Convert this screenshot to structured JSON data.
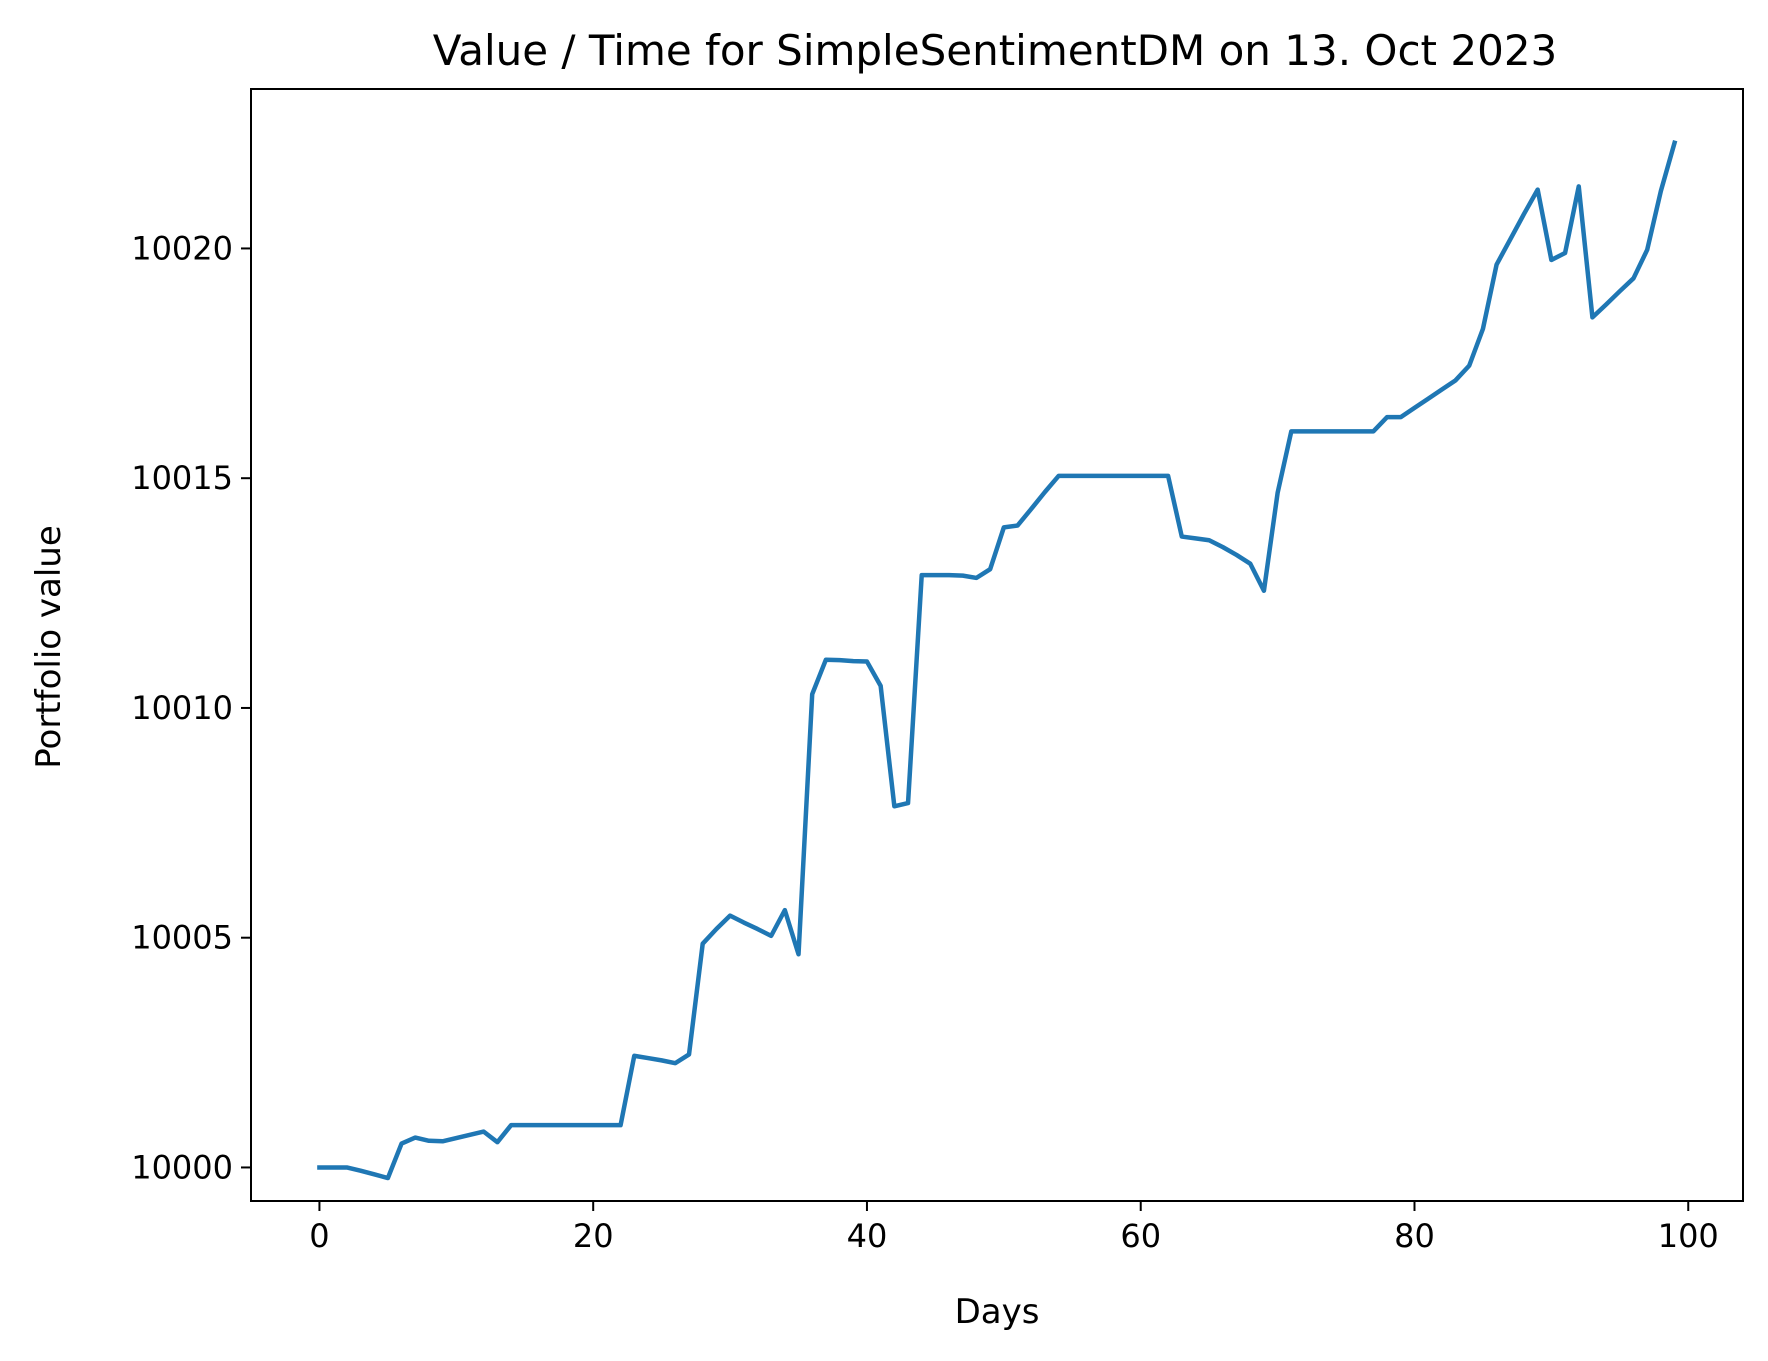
{
  "chart_data": {
    "type": "line",
    "title": "Value / Time for SimpleSentimentDM on 13. Oct 2023",
    "xlabel": "Days",
    "ylabel": "Portfolio value",
    "xlim": [
      -5,
      104
    ],
    "ylim": [
      9999.27,
      10023.47
    ],
    "xticks": [
      0,
      20,
      40,
      60,
      80,
      100
    ],
    "yticks": [
      10000,
      10005,
      10010,
      10015,
      10020
    ],
    "grid": false,
    "legend": "none",
    "series": [
      {
        "color": "#1f77b4",
        "x": [
          0,
          1,
          2,
          3,
          4,
          5,
          6,
          7,
          8,
          9,
          10,
          11,
          12,
          13,
          14,
          15,
          16,
          17,
          18,
          19,
          20,
          21,
          22,
          23,
          24,
          25,
          26,
          27,
          28,
          29,
          30,
          31,
          32,
          33,
          34,
          35,
          36,
          37,
          38,
          39,
          40,
          41,
          42,
          43,
          44,
          45,
          46,
          47,
          48,
          49,
          50,
          51,
          52,
          53,
          54,
          55,
          56,
          57,
          58,
          59,
          60,
          61,
          62,
          63,
          64,
          65,
          66,
          67,
          68,
          69,
          70,
          71,
          72,
          73,
          74,
          75,
          76,
          77,
          78,
          79,
          80,
          81,
          82,
          83,
          84,
          85,
          86,
          87,
          88,
          89,
          90,
          91,
          92,
          93,
          94,
          95,
          96,
          97,
          98,
          99
        ],
        "y": [
          10000,
          10000,
          10000,
          9999.93,
          9999.85,
          9999.77,
          10000.52,
          10000.65,
          10000.58,
          10000.57,
          10000.64,
          10000.71,
          10000.78,
          10000.55,
          10000.92,
          10000.92,
          10000.92,
          10000.92,
          10000.92,
          10000.92,
          10000.92,
          10000.92,
          10000.92,
          10002.43,
          10002.38,
          10002.33,
          10002.27,
          10002.46,
          10004.87,
          10005.19,
          10005.48,
          10005.33,
          10005.19,
          10005.04,
          10005.6,
          10004.64,
          10010.3,
          10011.05,
          10011.04,
          10011.02,
          10011.01,
          10010.48,
          10007.86,
          10007.93,
          10012.89,
          10012.89,
          10012.89,
          10012.88,
          10012.83,
          10013.02,
          10013.93,
          10013.97,
          10014.33,
          10014.7,
          10015.05,
          10015.05,
          10015.05,
          10015.05,
          10015.05,
          10015.05,
          10015.05,
          10015.05,
          10015.05,
          10013.73,
          10013.69,
          10013.65,
          10013.5,
          10013.33,
          10013.14,
          10012.55,
          10014.68,
          10016.02,
          10016.02,
          10016.02,
          10016.02,
          10016.02,
          10016.02,
          10016.02,
          10016.33,
          10016.33,
          10016.53,
          10016.73,
          10016.93,
          10017.13,
          10017.45,
          10018.25,
          10019.65,
          10020.2,
          10020.75,
          10021.28,
          10019.75,
          10019.9,
          10021.35,
          10018.5,
          10018.78,
          10019.07,
          10019.35,
          10019.97,
          10021.25,
          10022.3
        ]
      }
    ]
  }
}
